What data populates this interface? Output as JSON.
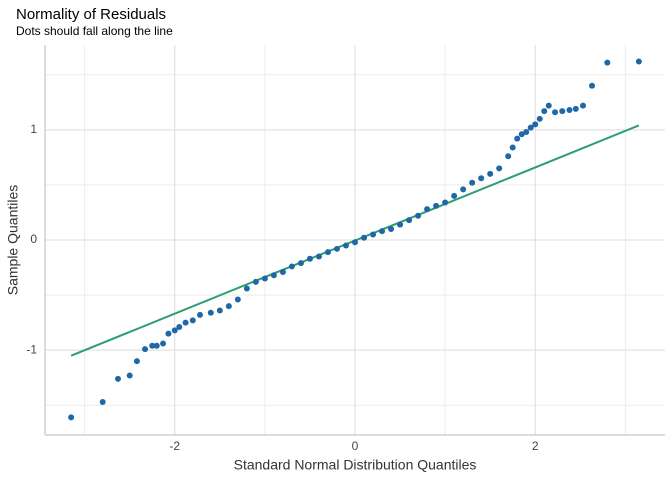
{
  "chart_data": {
    "type": "qq",
    "title": "Normality of Residuals",
    "subtitle": "Dots should fall along the line",
    "x_label": "Standard Normal Distribution Quantiles",
    "y_label": "Sample Quantiles",
    "xlim": [
      -3.44,
      3.44
    ],
    "ylim": [
      -1.77,
      1.77
    ],
    "xticks": [
      -2,
      0,
      2
    ],
    "yticks": [
      -1,
      0,
      1
    ],
    "xminorticks": [
      -3,
      -1,
      1,
      3
    ],
    "yminorticks": [
      -1.5,
      -0.5,
      0.5,
      1.5
    ],
    "grid": true,
    "points": {
      "color": "#1f68a8",
      "x": [
        -3.15,
        -2.8,
        -2.63,
        -2.5,
        -2.42,
        -2.33,
        -2.25,
        -2.2,
        -2.13,
        -2.07,
        -2.0,
        -1.95,
        -1.88,
        -1.8,
        -1.72,
        -1.6,
        -1.5,
        -1.4,
        -1.3,
        -1.2,
        -1.1,
        -1.0,
        -0.9,
        -0.8,
        -0.7,
        -0.6,
        -0.5,
        -0.4,
        -0.3,
        -0.2,
        -0.1,
        0,
        0.1,
        0.2,
        0.3,
        0.4,
        0.5,
        0.6,
        0.7,
        0.8,
        0.9,
        1.0,
        1.1,
        1.2,
        1.3,
        1.4,
        1.5,
        1.6,
        1.7,
        1.75,
        1.8,
        1.85,
        1.9,
        1.95,
        2.0,
        2.05,
        2.1,
        2.15,
        2.22,
        2.3,
        2.38,
        2.45,
        2.53,
        2.63,
        2.8,
        3.15
      ],
      "y": [
        -1.61,
        -1.47,
        -1.26,
        -1.23,
        -1.1,
        -0.99,
        -0.96,
        -0.96,
        -0.94,
        -0.85,
        -0.82,
        -0.79,
        -0.75,
        -0.73,
        -0.68,
        -0.66,
        -0.64,
        -0.6,
        -0.54,
        -0.44,
        -0.38,
        -0.35,
        -0.32,
        -0.29,
        -0.24,
        -0.21,
        -0.17,
        -0.15,
        -0.11,
        -0.08,
        -0.05,
        -0.02,
        0.02,
        0.05,
        0.08,
        0.1,
        0.14,
        0.18,
        0.22,
        0.28,
        0.31,
        0.34,
        0.4,
        0.46,
        0.52,
        0.56,
        0.6,
        0.65,
        0.76,
        0.84,
        0.92,
        0.96,
        0.98,
        1.02,
        1.05,
        1.1,
        1.17,
        1.22,
        1.16,
        1.17,
        1.18,
        1.19,
        1.22,
        1.4,
        1.61,
        1.62
      ]
    },
    "reference_line": {
      "color": "#2f9e6f",
      "x": [
        -3.15,
        3.15
      ],
      "y": [
        -1.05,
        1.04
      ]
    }
  }
}
